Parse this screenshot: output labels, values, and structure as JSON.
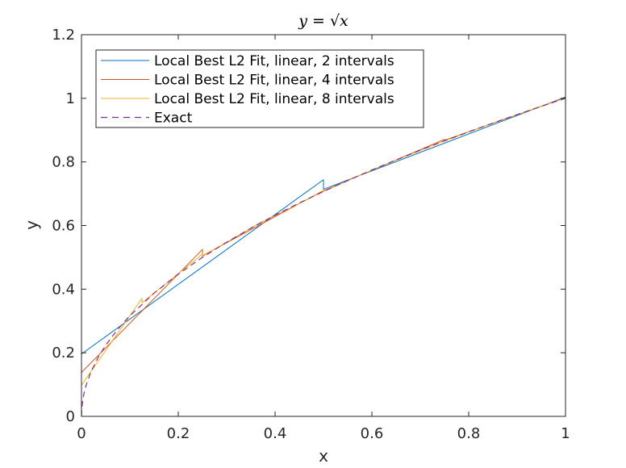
{
  "chart_data": {
    "type": "line",
    "title": "y = √x",
    "xlabel": "x",
    "ylabel": "y",
    "xlim": [
      0,
      1
    ],
    "ylim": [
      0,
      1.2
    ],
    "xticks": [
      0,
      0.2,
      0.4,
      0.6,
      0.8,
      1
    ],
    "yticks": [
      0,
      0.2,
      0.4,
      0.6,
      0.8,
      1,
      1.2
    ],
    "xtick_labels": [
      "0",
      "0.2",
      "0.4",
      "0.6",
      "0.8",
      "1"
    ],
    "ytick_labels": [
      "0",
      "0.2",
      "0.4",
      "0.6",
      "0.8",
      "1",
      "1.2"
    ],
    "grid": false,
    "legend_placement": "top-left",
    "series": [
      {
        "name": "Local Best L2 Fit, linear, 2 intervals",
        "color": "#0072BD",
        "dash": "solid",
        "segments": [
          [
            [
              0,
              0.196
            ],
            [
              0.5,
              0.744
            ]
          ],
          [
            [
              0.5,
              0.714
            ],
            [
              1,
              1.004
            ]
          ]
        ]
      },
      {
        "name": "Local Best L2 Fit, linear, 4 intervals",
        "color": "#D95319",
        "dash": "solid",
        "segments": [
          [
            [
              0,
              0.138
            ],
            [
              0.25,
              0.525
            ]
          ],
          [
            [
              0.25,
              0.505
            ],
            [
              0.5,
              0.71
            ]
          ],
          [
            [
              0.5,
              0.709
            ],
            [
              0.75,
              0.871
            ]
          ],
          [
            [
              0.75,
              0.868
            ],
            [
              1,
              1.002
            ]
          ]
        ]
      },
      {
        "name": "Local Best L2 Fit, linear, 8 intervals",
        "color": "#EDB120",
        "dash": "solid",
        "segments": [
          [
            [
              0,
              0.098
            ],
            [
              0.125,
              0.371
            ]
          ],
          [
            [
              0.125,
              0.357
            ],
            [
              0.25,
              0.51
            ]
          ],
          [
            [
              0.25,
              0.503
            ],
            [
              0.375,
              0.614
            ]
          ],
          [
            [
              0.375,
              0.612
            ],
            [
              0.5,
              0.708
            ]
          ],
          [
            [
              0.5,
              0.707
            ],
            [
              0.625,
              0.791
            ]
          ],
          [
            [
              0.625,
              0.79
            ],
            [
              0.75,
              0.867
            ]
          ],
          [
            [
              0.75,
              0.866
            ],
            [
              0.875,
              0.936
            ]
          ],
          [
            [
              0.875,
              0.935
            ],
            [
              1,
              1.001
            ]
          ]
        ]
      },
      {
        "name": "Exact",
        "color": "#7E2F8E",
        "dash": "dashed",
        "points": [
          [
            0,
            0
          ],
          [
            0.001,
            0.0316
          ],
          [
            0.003,
            0.0548
          ],
          [
            0.006,
            0.0775
          ],
          [
            0.01,
            0.1
          ],
          [
            0.02,
            0.1414
          ],
          [
            0.035,
            0.1871
          ],
          [
            0.05,
            0.2236
          ],
          [
            0.075,
            0.2739
          ],
          [
            0.1,
            0.3162
          ],
          [
            0.15,
            0.3873
          ],
          [
            0.2,
            0.4472
          ],
          [
            0.25,
            0.5
          ],
          [
            0.3,
            0.5477
          ],
          [
            0.35,
            0.5916
          ],
          [
            0.4,
            0.6325
          ],
          [
            0.45,
            0.6708
          ],
          [
            0.5,
            0.7071
          ],
          [
            0.55,
            0.7416
          ],
          [
            0.6,
            0.7746
          ],
          [
            0.65,
            0.8062
          ],
          [
            0.7,
            0.8367
          ],
          [
            0.75,
            0.866
          ],
          [
            0.8,
            0.8944
          ],
          [
            0.85,
            0.922
          ],
          [
            0.9,
            0.9487
          ],
          [
            0.95,
            0.9747
          ],
          [
            1,
            1
          ]
        ]
      }
    ]
  }
}
